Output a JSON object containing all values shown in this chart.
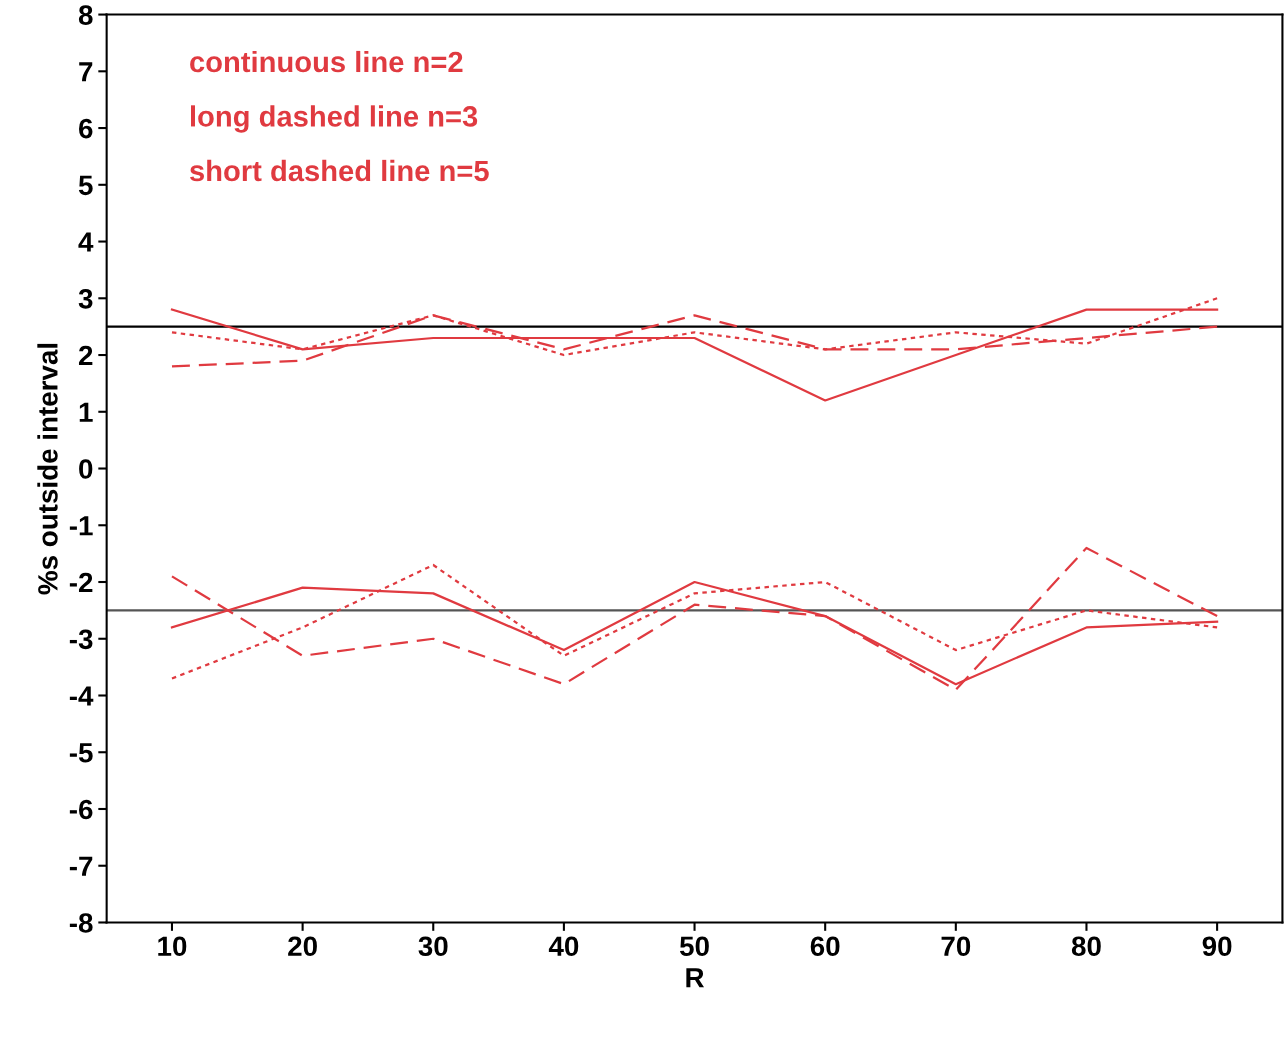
{
  "chart_data": {
    "type": "line",
    "xlabel": "R",
    "ylabel": "%s outside interval",
    "x": [
      10,
      20,
      30,
      40,
      50,
      60,
      70,
      80,
      90
    ],
    "series": [
      {
        "color": "#e03a40",
        "line_style": "solid",
        "values": [
          2.8,
          2.1,
          2.3,
          2.3,
          2.3,
          1.2,
          2.0,
          2.8,
          2.8
        ]
      },
      {
        "color": "#e03a40",
        "line_style": "dashed",
        "values": [
          1.8,
          1.9,
          2.7,
          2.1,
          2.7,
          2.1,
          2.1,
          2.3,
          2.5
        ]
      },
      {
        "color": "#e03a40",
        "line_style": "dotted",
        "values": [
          2.4,
          2.1,
          2.7,
          2.0,
          2.4,
          2.1,
          2.4,
          2.2,
          3.0
        ]
      },
      {
        "color": "#e03a40",
        "line_style": "solid",
        "values": [
          -2.8,
          -2.1,
          -2.2,
          -3.2,
          -2.0,
          -2.6,
          -3.8,
          -2.8,
          -2.7
        ]
      },
      {
        "color": "#e03a40",
        "line_style": "dashed",
        "values": [
          -1.9,
          -3.3,
          -3.0,
          -3.8,
          -2.4,
          -2.6,
          -3.9,
          -1.4,
          -2.6
        ]
      },
      {
        "color": "#e03a40",
        "line_style": "dotted",
        "values": [
          -3.7,
          -2.8,
          -1.7,
          -3.3,
          -2.2,
          -2.0,
          -3.2,
          -2.5,
          -2.8
        ]
      }
    ],
    "ref_lines": [
      {
        "axis": "y",
        "value": 2.5,
        "color": "#000000"
      },
      {
        "axis": "y",
        "value": -2.5,
        "color": "#555555"
      }
    ],
    "annotations": [
      "continuous line n=2",
      "long dashed line n=3",
      "short dashed line n=5"
    ],
    "xlim": [
      5,
      95
    ],
    "xticks": [
      10,
      20,
      30,
      40,
      50,
      60,
      70,
      80,
      90
    ],
    "ylim": [
      -8,
      8
    ],
    "yticks": [
      -8,
      -7,
      -6,
      -5,
      -4,
      -3,
      -2,
      -1,
      0,
      1,
      2,
      3,
      4,
      5,
      6,
      7,
      8
    ],
    "grid": false,
    "legend": false,
    "marker": "none"
  }
}
